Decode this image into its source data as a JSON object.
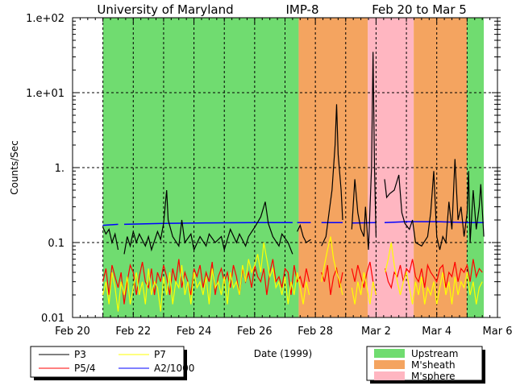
{
  "chart_data": {
    "type": "line",
    "title_parts": [
      "University of Maryland",
      "IMP-8",
      "Feb 20 to Mar 5"
    ],
    "xlabel": "Date (1999)",
    "ylabel": "Counts/Sec",
    "yscale": "log",
    "ylim": [
      0.01,
      100
    ],
    "xlim_days_since_feb20": [
      0,
      14
    ],
    "x_tick_labels": [
      {
        "day": 0,
        "label": "Feb 20"
      },
      {
        "day": 2,
        "label": "Feb 22"
      },
      {
        "day": 4,
        "label": "Feb 24"
      },
      {
        "day": 6,
        "label": "Feb 26"
      },
      {
        "day": 8,
        "label": "Feb 28"
      },
      {
        "day": 10,
        "label": "Mar 2"
      },
      {
        "day": 12,
        "label": "Mar 4"
      },
      {
        "day": 14,
        "label": "Mar 6"
      }
    ],
    "y_tick_labels": [
      {
        "value": 100,
        "label": "1.e+02"
      },
      {
        "value": 10,
        "label": "1.e+01"
      },
      {
        "value": 1,
        "label": "1."
      },
      {
        "value": 0.1,
        "label": "0.1"
      },
      {
        "value": 0.01,
        "label": "0.01"
      }
    ],
    "grid": "dashed, daily vertical + decade horizontal",
    "regions": [
      {
        "name": "Upstream",
        "start": 1.0,
        "end": 7.45
      },
      {
        "name": "M'sheath",
        "start": 7.45,
        "end": 9.73
      },
      {
        "name": "M'sphere",
        "start": 9.73,
        "end": 11.24
      },
      {
        "name": "M'sheath",
        "start": 11.24,
        "end": 12.99
      },
      {
        "name": "Upstream",
        "start": 12.99,
        "end": 13.55
      }
    ],
    "region_legend": [
      {
        "name": "Upstream",
        "color": "#70dc70"
      },
      {
        "name": "M'sheath",
        "color": "#f4a460"
      },
      {
        "name": "M'sphere",
        "color": "#ffb6c1"
      }
    ],
    "series": [
      {
        "name": "P3",
        "color": "#000000",
        "points": [
          [
            1.0,
            0.16
          ],
          [
            1.1,
            0.13
          ],
          [
            1.2,
            0.15
          ],
          [
            1.3,
            0.1
          ],
          [
            1.4,
            0.13
          ],
          [
            1.5,
            0.08
          ],
          null,
          [
            1.7,
            0.07
          ],
          [
            1.8,
            0.12
          ],
          [
            1.9,
            0.09
          ],
          [
            2.0,
            0.14
          ],
          [
            2.1,
            0.1
          ],
          [
            2.2,
            0.13
          ],
          [
            2.4,
            0.09
          ],
          [
            2.5,
            0.12
          ],
          [
            2.6,
            0.08
          ],
          [
            2.8,
            0.14
          ],
          [
            2.9,
            0.11
          ],
          [
            3.0,
            0.18
          ],
          [
            3.1,
            0.5
          ],
          [
            3.15,
            0.2
          ],
          [
            3.3,
            0.12
          ],
          [
            3.5,
            0.09
          ],
          [
            3.6,
            0.2
          ],
          [
            3.7,
            0.1
          ],
          [
            3.9,
            0.13
          ],
          [
            4.0,
            0.08
          ],
          [
            4.2,
            0.12
          ],
          [
            4.4,
            0.09
          ],
          [
            4.5,
            0.13
          ],
          [
            4.7,
            0.1
          ],
          [
            4.9,
            0.12
          ],
          [
            5.0,
            0.08
          ],
          [
            5.2,
            0.15
          ],
          [
            5.4,
            0.1
          ],
          [
            5.5,
            0.13
          ],
          [
            5.7,
            0.09
          ],
          [
            5.8,
            0.12
          ],
          [
            6.0,
            0.16
          ],
          [
            6.2,
            0.22
          ],
          [
            6.35,
            0.35
          ],
          [
            6.45,
            0.18
          ],
          [
            6.6,
            0.12
          ],
          [
            6.8,
            0.09
          ],
          [
            6.9,
            0.13
          ],
          [
            7.1,
            0.1
          ],
          [
            7.25,
            0.07
          ],
          null,
          [
            7.4,
            0.14
          ],
          [
            7.5,
            0.17
          ],
          [
            7.6,
            0.12
          ],
          [
            7.7,
            0.1
          ],
          [
            7.85,
            0.11
          ],
          null,
          [
            8.2,
            0.09
          ],
          [
            8.35,
            0.12
          ],
          [
            8.45,
            0.25
          ],
          [
            8.55,
            0.5
          ],
          [
            8.65,
            2.0
          ],
          [
            8.7,
            7.0
          ],
          [
            8.75,
            1.5
          ],
          [
            8.85,
            0.5
          ],
          [
            8.9,
            0.2
          ],
          null,
          [
            9.2,
            0.15
          ],
          [
            9.3,
            0.7
          ],
          [
            9.4,
            0.25
          ],
          [
            9.5,
            0.15
          ],
          [
            9.6,
            0.12
          ],
          [
            9.65,
            0.3
          ],
          [
            9.75,
            0.08
          ],
          [
            9.85,
            1.0
          ],
          [
            9.9,
            35
          ],
          [
            9.95,
            1.0
          ],
          [
            10.0,
            0.12
          ],
          null,
          [
            10.28,
            0.7
          ],
          [
            10.35,
            0.4
          ],
          [
            10.45,
            0.45
          ],
          [
            10.6,
            0.5
          ],
          [
            10.75,
            0.8
          ],
          [
            10.85,
            0.25
          ],
          [
            10.95,
            0.18
          ],
          [
            11.1,
            0.15
          ],
          [
            11.2,
            0.2
          ],
          [
            11.3,
            0.1
          ],
          [
            11.5,
            0.09
          ],
          [
            11.7,
            0.12
          ],
          [
            11.8,
            0.25
          ],
          [
            11.9,
            0.9
          ],
          [
            12.0,
            0.12
          ],
          [
            12.1,
            0.08
          ],
          [
            12.2,
            0.12
          ],
          [
            12.3,
            0.1
          ],
          [
            12.4,
            0.35
          ],
          [
            12.5,
            0.15
          ],
          [
            12.6,
            1.3
          ],
          [
            12.7,
            0.2
          ],
          [
            12.8,
            0.3
          ],
          [
            12.9,
            0.12
          ],
          [
            13.0,
            0.25
          ],
          [
            13.05,
            0.9
          ],
          [
            13.1,
            0.1
          ],
          [
            13.2,
            0.5
          ],
          [
            13.3,
            0.15
          ],
          [
            13.4,
            0.3
          ],
          [
            13.45,
            0.6
          ],
          [
            13.55,
            0.12
          ]
        ]
      },
      {
        "name": "P5/4",
        "color": "#ff0000",
        "x0": 1.0,
        "dx": 0.1,
        "values": [
          0.03,
          0.045,
          0.02,
          0.05,
          0.035,
          0.025,
          0.04,
          0.015,
          0.03,
          0.05,
          0.04,
          0.02,
          0.035,
          0.055,
          0.03,
          0.025,
          0.045,
          0.02,
          0.04,
          0.03,
          0.05,
          0.035,
          0.02,
          0.045,
          0.03,
          0.06,
          0.025,
          0.04,
          0.03,
          0.02,
          0.045,
          0.035,
          0.05,
          0.025,
          0.04,
          0.03,
          0.055,
          0.02,
          0.035,
          0.045,
          0.03,
          0.04,
          0.025,
          0.05,
          0.035,
          0.02,
          0.045,
          0.03,
          0.04,
          0.025,
          0.05,
          0.035,
          0.03,
          0.045,
          0.02,
          0.04,
          0.06,
          0.03,
          0.035,
          0.025,
          0.045,
          0.04,
          0.02,
          0.05,
          0.03,
          0.035,
          0.025,
          0.045,
          0.03,
          null,
          null,
          null,
          0.04,
          0.03,
          0.05,
          0.02,
          0.035,
          0.045,
          0.025,
          0.04,
          null,
          null,
          0.045,
          0.03,
          0.05,
          0.035,
          0.025,
          0.04,
          0.055,
          0.03,
          0.02,
          null,
          null,
          0.045,
          0.03,
          0.025,
          0.04,
          0.035,
          0.05,
          0.03,
          0.045,
          0.04,
          0.06,
          0.035,
          0.03,
          0.045,
          0.025,
          0.05,
          0.04,
          0.035,
          0.03,
          0.045,
          0.05,
          0.025,
          0.04,
          0.035,
          0.055,
          0.03,
          0.045,
          0.04,
          0.05,
          0.03,
          0.06,
          0.035,
          0.045,
          0.04
        ]
      },
      {
        "name": "P7",
        "color": "#ffff00",
        "x0": 1.0,
        "dx": 0.1,
        "values": [
          0.02,
          0.03,
          0.015,
          0.04,
          0.025,
          0.012,
          0.03,
          0.02,
          0.035,
          0.015,
          0.025,
          0.04,
          0.02,
          0.03,
          0.015,
          0.045,
          0.02,
          0.03,
          0.025,
          0.012,
          0.035,
          0.02,
          0.04,
          0.015,
          0.03,
          0.025,
          0.05,
          0.02,
          0.03,
          0.015,
          0.04,
          0.025,
          0.03,
          0.02,
          0.035,
          0.015,
          0.045,
          0.025,
          0.03,
          0.02,
          0.035,
          0.015,
          0.04,
          0.025,
          0.03,
          0.02,
          0.05,
          0.03,
          0.06,
          0.04,
          0.05,
          0.07,
          0.04,
          0.1,
          0.06,
          0.035,
          0.045,
          0.025,
          0.03,
          0.02,
          0.035,
          0.015,
          0.03,
          0.02,
          0.04,
          0.025,
          0.015,
          0.03,
          0.02,
          null,
          null,
          null,
          0.03,
          0.05,
          0.08,
          0.12,
          0.06,
          0.04,
          0.03,
          0.02,
          null,
          null,
          0.025,
          0.015,
          0.03,
          0.02,
          0.04,
          0.025,
          0.015,
          0.03,
          0.02,
          null,
          null,
          0.04,
          0.06,
          0.1,
          0.05,
          0.03,
          0.02,
          0.03,
          0.04,
          0.025,
          0.015,
          0.03,
          0.02,
          0.035,
          0.015,
          0.025,
          0.02,
          0.03,
          0.015,
          0.025,
          0.04,
          0.02,
          0.03,
          0.015,
          0.035,
          0.02,
          0.03,
          0.025,
          0.04,
          0.02,
          0.03,
          0.015,
          0.025,
          0.03
        ]
      },
      {
        "name": "A2/1000",
        "color": "#0000ff",
        "points": [
          [
            1.0,
            0.17
          ],
          [
            1.5,
            0.175
          ],
          null,
          [
            1.7,
            0.175
          ],
          [
            3.0,
            0.18
          ],
          [
            4.5,
            0.183
          ],
          [
            6.0,
            0.185
          ],
          [
            7.25,
            0.185
          ],
          null,
          [
            7.4,
            0.185
          ],
          [
            7.85,
            0.185
          ],
          null,
          [
            8.2,
            0.185
          ],
          [
            8.9,
            0.185
          ],
          null,
          [
            9.2,
            0.182
          ],
          [
            10.0,
            0.185
          ],
          null,
          [
            10.28,
            0.185
          ],
          [
            11.0,
            0.19
          ],
          [
            12.0,
            0.19
          ],
          [
            13.0,
            0.185
          ],
          [
            13.55,
            0.185
          ]
        ]
      }
    ],
    "legend": [
      "P3",
      "P5/4",
      "P7",
      "A2/1000"
    ]
  }
}
